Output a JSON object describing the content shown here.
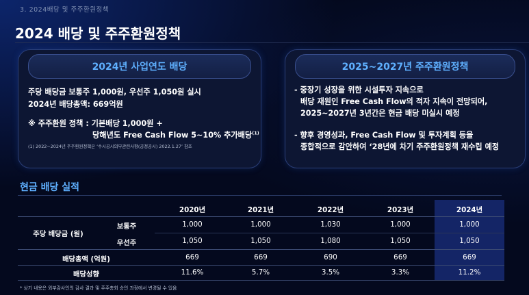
{
  "section_label": "3. 2024배당 및 주주환원정책",
  "page_title": "2024 배당 및 주주환원정책",
  "left_panel": {
    "title": "2024년 사업연도 배당",
    "line1": "주당 배당금 보통주 1,000원, 우선주 1,050원 실시",
    "line2": "2024년 배당총액: 669억원",
    "policy_line1": "※ 주주환원 정책 : 기본배당 1,000원 +",
    "policy_line2": "당해년도 Free Cash Flow 5~10% 추가배당",
    "policy_sup": "(1)",
    "note": "(1) 2022~2024년 주주환원정책은 ‘수시공시의무관련사항(공정공시) 2022.1.27’ 참조"
  },
  "right_panel": {
    "title": "2025~2027년 주주환원정책",
    "b1_line1": "- 중장기 성장을 위한 시설투자 지속으로",
    "b1_line2": "배당 재원인 Free Cash Flow의 적자 지속이 전망되어,",
    "b1_line3": "2025~2027년 3년간은 현금 배당 미실시 예정",
    "b2_line1": "- 향후 경영성과, Free Cash Flow 및 투자계획 등을",
    "b2_line2": "종합적으로 감안하여 ‘28년에 차기 주주환원정책 재수립 예정"
  },
  "table_section_title": "현금 배당 실적",
  "table": {
    "years": [
      "2020년",
      "2021년",
      "2022년",
      "2023년",
      "2024년"
    ],
    "group_label": "주당 배당금 (원)",
    "sub_common": "보통주",
    "sub_preferred": "우선주",
    "common": [
      "1,000",
      "1,000",
      "1,030",
      "1,000",
      "1,000"
    ],
    "preferred": [
      "1,050",
      "1,050",
      "1,080",
      "1,050",
      "1,050"
    ],
    "total_label": "배당총액 (억원)",
    "total": [
      "669",
      "669",
      "690",
      "669",
      "669"
    ],
    "payout_label": "배당성향",
    "payout": [
      "11.6%",
      "5.7%",
      "3.5%",
      "3.3%",
      "11.2%"
    ]
  },
  "footnote": "* 상기 내용은 외부감사인의 감사 결과 및 주주총회 승인 과정에서 변경될 수 있음",
  "colors": {
    "accent": "#5fb0ff",
    "background": "#04091e",
    "highlight_column": "#142566"
  }
}
